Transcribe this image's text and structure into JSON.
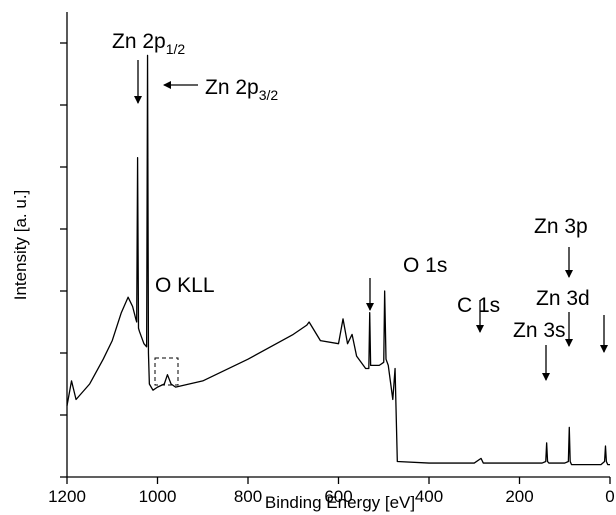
{
  "chart_data": {
    "type": "line",
    "xlabel": "Binding Energy [eV]",
    "ylabel": "Intensity [a. u.]",
    "xlim": [
      1200,
      0
    ],
    "xticks": [
      1200,
      1000,
      800,
      600,
      400,
      200,
      0
    ],
    "ylim": [
      0,
      15
    ],
    "yticks": [
      0,
      2,
      4,
      6,
      8,
      10,
      12,
      14
    ],
    "color": "#000000",
    "x": [
      1200,
      1190,
      1180,
      1150,
      1120,
      1100,
      1080,
      1065,
      1055,
      1048,
      1046,
      1044,
      1042,
      1040,
      1030,
      1024,
      1022,
      1020,
      1018,
      1010,
      1000,
      985,
      978,
      970,
      960,
      900,
      800,
      700,
      670,
      665,
      640,
      600,
      590,
      580,
      570,
      560,
      540,
      533,
      531,
      529,
      525,
      510,
      500,
      498,
      495,
      490,
      480,
      475,
      470,
      400,
      300,
      285,
      280,
      200,
      150,
      142,
      140,
      138,
      135,
      100,
      92,
      90,
      88,
      85,
      20,
      12,
      10,
      8,
      5,
      0
    ],
    "values": [
      2.3,
      3.1,
      2.5,
      3.0,
      3.8,
      4.4,
      5.3,
      5.8,
      5.5,
      5.1,
      5.0,
      10.3,
      4.8,
      4.7,
      4.3,
      4.2,
      13.6,
      4.0,
      3.0,
      2.8,
      2.9,
      3.0,
      3.3,
      3.0,
      2.9,
      3.1,
      3.8,
      4.6,
      4.9,
      5.0,
      4.4,
      4.3,
      5.1,
      4.3,
      4.6,
      3.9,
      3.5,
      3.5,
      5.3,
      3.6,
      3.6,
      3.6,
      3.7,
      6.0,
      3.8,
      3.6,
      2.5,
      3.5,
      0.5,
      0.45,
      0.45,
      0.6,
      0.45,
      0.45,
      0.45,
      0.5,
      1.1,
      0.5,
      0.45,
      0.45,
      0.5,
      1.6,
      0.5,
      0.4,
      0.4,
      0.5,
      1.0,
      0.5,
      0.4,
      0.4
    ],
    "annotations": [
      {
        "text": "Zn 2p",
        "sub": "1/2"
      },
      {
        "text": "Zn 2p",
        "sub": "3/2"
      },
      {
        "text": "O KLL"
      },
      {
        "text": "O 1s"
      },
      {
        "text": "C 1s"
      },
      {
        "text": "Zn 3s"
      },
      {
        "text": "Zn 3p"
      },
      {
        "text": "Zn 3d"
      }
    ]
  }
}
